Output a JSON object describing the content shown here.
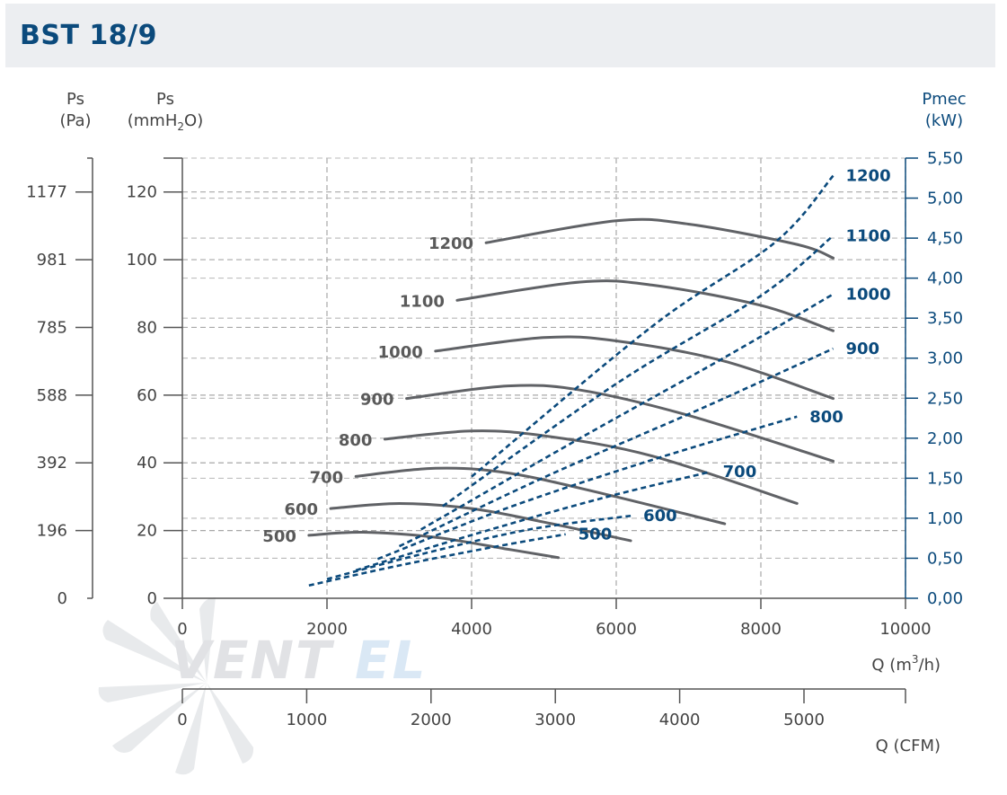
{
  "header": {
    "title": "BST 18/9"
  },
  "axes": {
    "ps_pa": {
      "label": "Ps",
      "unit": "(Pa)",
      "ticks": [
        {
          "v": 0,
          "t": "0"
        },
        {
          "v": 20,
          "t": "196"
        },
        {
          "v": 40,
          "t": "392"
        },
        {
          "v": 60,
          "t": "588"
        },
        {
          "v": 80,
          "t": "785"
        },
        {
          "v": 100,
          "t": "981"
        },
        {
          "v": 120,
          "t": "1177"
        }
      ]
    },
    "ps_mmh2o": {
      "label": "Ps",
      "unit_pre": "(mmH",
      "unit_sub": "2",
      "unit_post": "O)",
      "range": [
        0,
        130
      ],
      "ticks": [
        {
          "v": 0,
          "t": "0"
        },
        {
          "v": 20,
          "t": "20"
        },
        {
          "v": 40,
          "t": "40"
        },
        {
          "v": 60,
          "t": "60"
        },
        {
          "v": 80,
          "t": "80"
        },
        {
          "v": 100,
          "t": "100"
        },
        {
          "v": 120,
          "t": "120"
        }
      ]
    },
    "pmec": {
      "label": "Pmec",
      "unit": "(kW)",
      "range": [
        0,
        5.5
      ],
      "ticks": [
        {
          "v": 0,
          "t": "0,00"
        },
        {
          "v": 0.5,
          "t": "0,50"
        },
        {
          "v": 1.0,
          "t": "1,00"
        },
        {
          "v": 1.5,
          "t": "1,50"
        },
        {
          "v": 2.0,
          "t": "2,00"
        },
        {
          "v": 2.5,
          "t": "2,50"
        },
        {
          "v": 3.0,
          "t": "3,00"
        },
        {
          "v": 3.5,
          "t": "3,50"
        },
        {
          "v": 4.0,
          "t": "4,00"
        },
        {
          "v": 4.5,
          "t": "4,50"
        },
        {
          "v": 5.0,
          "t": "5,00"
        },
        {
          "v": 5.5,
          "t": "5,50"
        }
      ]
    },
    "q_m3h": {
      "label_pre": "Q (m",
      "label_sup": "3",
      "label_post": "/h)",
      "range": [
        0,
        10000
      ],
      "ticks": [
        {
          "v": 0,
          "t": "0"
        },
        {
          "v": 2000,
          "t": "2000"
        },
        {
          "v": 4000,
          "t": "4000"
        },
        {
          "v": 6000,
          "t": "6000"
        },
        {
          "v": 8000,
          "t": "8000"
        },
        {
          "v": 10000,
          "t": "10000"
        }
      ]
    },
    "q_cfm": {
      "label": "Q (CFM)",
      "ticks": [
        {
          "v": 0,
          "t": "0"
        },
        {
          "v": 1000,
          "t": "1000"
        },
        {
          "v": 2000,
          "t": "2000"
        },
        {
          "v": 3000,
          "t": "3000"
        },
        {
          "v": 4000,
          "t": "4000"
        },
        {
          "v": 5000,
          "t": "5000"
        }
      ]
    }
  },
  "chart_data": {
    "type": "line",
    "x_unit": "m3/h",
    "xlim": [
      0,
      10000
    ],
    "ylim_pressure_mmh2o": [
      0,
      130
    ],
    "ylim_power_kw": [
      0,
      5.5
    ],
    "grid": true,
    "pressure_curves": [
      {
        "name": "500",
        "points": [
          [
            1750,
            18.6
          ],
          [
            2500,
            19.5
          ],
          [
            3500,
            18.0
          ],
          [
            4500,
            14.5
          ],
          [
            5200,
            12.0
          ]
        ]
      },
      {
        "name": "600",
        "points": [
          [
            2050,
            26.5
          ],
          [
            3000,
            28.0
          ],
          [
            4000,
            26.5
          ],
          [
            5000,
            22.5
          ],
          [
            6200,
            17.0
          ]
        ]
      },
      {
        "name": "700",
        "points": [
          [
            2400,
            36.0
          ],
          [
            3500,
            38.4
          ],
          [
            4500,
            37.0
          ],
          [
            5800,
            31.0
          ],
          [
            7500,
            22.0
          ]
        ]
      },
      {
        "name": "800",
        "points": [
          [
            2800,
            47.0
          ],
          [
            4000,
            49.4
          ],
          [
            5000,
            48.0
          ],
          [
            6500,
            42.0
          ],
          [
            8500,
            28.0
          ]
        ]
      },
      {
        "name": "900",
        "points": [
          [
            3100,
            59.0
          ],
          [
            4500,
            62.7
          ],
          [
            5500,
            61.5
          ],
          [
            7000,
            54.0
          ],
          [
            9000,
            40.5
          ]
        ]
      },
      {
        "name": "1000",
        "points": [
          [
            3500,
            73.0
          ],
          [
            5000,
            77.0
          ],
          [
            6000,
            76.0
          ],
          [
            7500,
            70.0
          ],
          [
            9000,
            59.0
          ]
        ]
      },
      {
        "name": "1100",
        "points": [
          [
            3800,
            88.0
          ],
          [
            5500,
            93.4
          ],
          [
            6500,
            92.5
          ],
          [
            8000,
            86.5
          ],
          [
            9000,
            79.0
          ]
        ]
      },
      {
        "name": "1200",
        "points": [
          [
            4200,
            105.0
          ],
          [
            6000,
            111.5
          ],
          [
            7000,
            110.5
          ],
          [
            8500,
            104.5
          ],
          [
            9000,
            100.5
          ]
        ]
      }
    ],
    "power_curves": [
      {
        "name": "500",
        "points": [
          [
            1750,
            0.16
          ],
          [
            3000,
            0.41
          ],
          [
            4300,
            0.64
          ],
          [
            5300,
            0.8
          ]
        ]
      },
      {
        "name": "600",
        "points": [
          [
            2000,
            0.24
          ],
          [
            3300,
            0.55
          ],
          [
            4800,
            0.86
          ],
          [
            6200,
            1.03
          ]
        ]
      },
      {
        "name": "700",
        "points": [
          [
            2400,
            0.35
          ],
          [
            4000,
            0.79
          ],
          [
            5800,
            1.25
          ],
          [
            7300,
            1.58
          ]
        ]
      },
      {
        "name": "800",
        "points": [
          [
            2700,
            0.49
          ],
          [
            4500,
            1.13
          ],
          [
            6500,
            1.73
          ],
          [
            8500,
            2.27
          ]
        ]
      },
      {
        "name": "900",
        "points": [
          [
            3000,
            0.65
          ],
          [
            5000,
            1.51
          ],
          [
            7200,
            2.38
          ],
          [
            9000,
            3.12
          ]
        ]
      },
      {
        "name": "1000",
        "points": [
          [
            3300,
            0.86
          ],
          [
            5500,
            2.0
          ],
          [
            7500,
            3.01
          ],
          [
            9000,
            3.8
          ]
        ]
      },
      {
        "name": "1100",
        "points": [
          [
            3600,
            1.15
          ],
          [
            6000,
            2.68
          ],
          [
            8000,
            3.78
          ],
          [
            9000,
            4.53
          ]
        ]
      },
      {
        "name": "1200",
        "points": [
          [
            4000,
            1.52
          ],
          [
            6500,
            3.4
          ],
          [
            8200,
            4.45
          ],
          [
            9000,
            5.28
          ]
        ]
      }
    ]
  }
}
